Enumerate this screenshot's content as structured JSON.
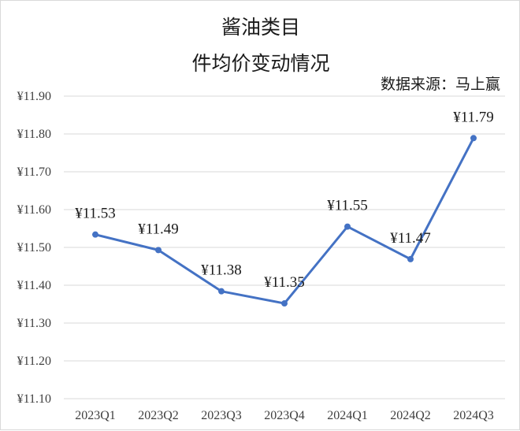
{
  "chart_data": {
    "type": "line",
    "title_line1": "酱油类目",
    "title_line2": "件均价变动情况",
    "source_note": "数据来源：马上赢",
    "categories": [
      "2023Q1",
      "2023Q2",
      "2023Q3",
      "2023Q4",
      "2024Q1",
      "2024Q2",
      "2024Q3"
    ],
    "series": [
      {
        "values": [
          11.534,
          11.493,
          11.384,
          11.352,
          11.555,
          11.469,
          11.789
        ],
        "data_labels": [
          "¥11.53",
          "¥11.49",
          "¥11.38",
          "¥11.35",
          "¥11.55",
          "¥11.47",
          "¥11.79"
        ]
      }
    ],
    "ylim": [
      11.1,
      11.9
    ],
    "yticks": [
      11.1,
      11.2,
      11.3,
      11.4,
      11.5,
      11.6,
      11.7,
      11.8,
      11.9
    ],
    "ytick_labels": [
      "¥11.10",
      "¥11.20",
      "¥11.30",
      "¥11.40",
      "¥11.50",
      "¥11.60",
      "¥11.70",
      "¥11.80",
      "¥11.90"
    ],
    "grid": true,
    "legend": false,
    "colors": {
      "line": "#4472c4",
      "grid": "#d9d9d9"
    }
  }
}
